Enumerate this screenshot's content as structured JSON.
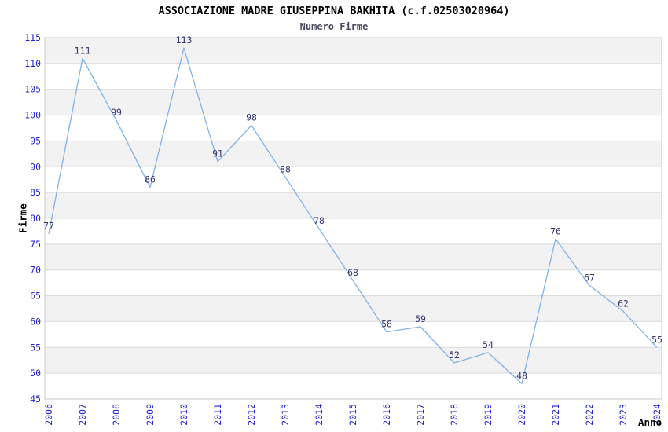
{
  "title": "ASSOCIAZIONE MADRE GIUSEPPINA BAKHITA (c.f.02503020964)",
  "subtitle": "Numero Firme",
  "chart_data": {
    "type": "line",
    "title": "ASSOCIAZIONE MADRE GIUSEPPINA BAKHITA (c.f.02503020964)",
    "subtitle": "Numero Firme",
    "xlabel": "Anno",
    "ylabel": "Firme",
    "categories": [
      "2006",
      "2007",
      "2008",
      "2009",
      "2010",
      "2011",
      "2012",
      "2013",
      "2014",
      "2015",
      "2016",
      "2017",
      "2018",
      "2019",
      "2020",
      "2021",
      "2022",
      "2023",
      "2024"
    ],
    "values": [
      77,
      111,
      99,
      86,
      113,
      91,
      98,
      88,
      78,
      68,
      58,
      59,
      52,
      54,
      48,
      76,
      67,
      62,
      55
    ],
    "ylim": [
      45,
      115
    ],
    "ytick_step": 5,
    "yticks": [
      45,
      50,
      55,
      60,
      65,
      70,
      75,
      80,
      85,
      90,
      95,
      100,
      105,
      110,
      115
    ],
    "grid": true,
    "band_fill": "alternating horizontal bands, gray starting at top (115-110)",
    "legend": "none",
    "data_labels": true,
    "colors": {
      "line": "#7fb2e8",
      "tick_label": "#2222cc",
      "data_label": "#333370",
      "band": "#f2f2f2",
      "gridline": "#d9d9d9",
      "plot_border": "#c9c9c9",
      "title": "#000000",
      "subtitle": "#47475e",
      "axis_title": "#000000",
      "background": "#ffffff"
    }
  }
}
